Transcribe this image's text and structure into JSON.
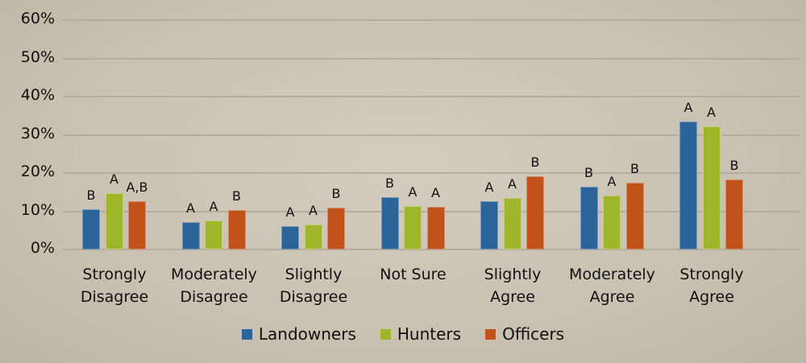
{
  "chart_data": {
    "type": "bar",
    "title": "",
    "xlabel": "",
    "ylabel": "",
    "ylim": [
      0,
      60
    ],
    "yticks": [
      "0%",
      "10%",
      "20%",
      "30%",
      "40%",
      "50%",
      "60%"
    ],
    "grid": true,
    "legend_position": "bottom",
    "categories": [
      "Strongly Disagree",
      "Moderately Disagree",
      "Slightly Disagree",
      "Not Sure",
      "Slightly Agree",
      "Moderately Agree",
      "Strongly Agree"
    ],
    "category_lines": [
      [
        "Strongly",
        "Disagree"
      ],
      [
        "Moderately",
        "Disagree"
      ],
      [
        "Slightly",
        "Disagree"
      ],
      [
        "Not Sure",
        ""
      ],
      [
        "Slightly",
        "Agree"
      ],
      [
        "Moderately",
        "Agree"
      ],
      [
        "Strongly",
        "Agree"
      ]
    ],
    "series": [
      {
        "name": "Landowners",
        "color": "#2a6499",
        "values": [
          10.5,
          7.2,
          6.1,
          13.7,
          12.6,
          16.4,
          33.5
        ],
        "annotations": [
          "B",
          "A",
          "A",
          "B",
          "A",
          "B",
          "A"
        ]
      },
      {
        "name": "Hunters",
        "color": "#9fb62b",
        "values": [
          14.7,
          7.6,
          6.5,
          11.4,
          13.5,
          14.1,
          32.2
        ],
        "annotations": [
          "A",
          "A",
          "A",
          "A",
          "A",
          "A",
          "A"
        ]
      },
      {
        "name": "Officers",
        "color": "#c0521a",
        "values": [
          12.6,
          10.3,
          11.0,
          11.2,
          19.2,
          17.5,
          18.3
        ],
        "annotations": [
          "A,B",
          "B",
          "B",
          "A",
          "B",
          "B",
          "B"
        ]
      }
    ]
  }
}
